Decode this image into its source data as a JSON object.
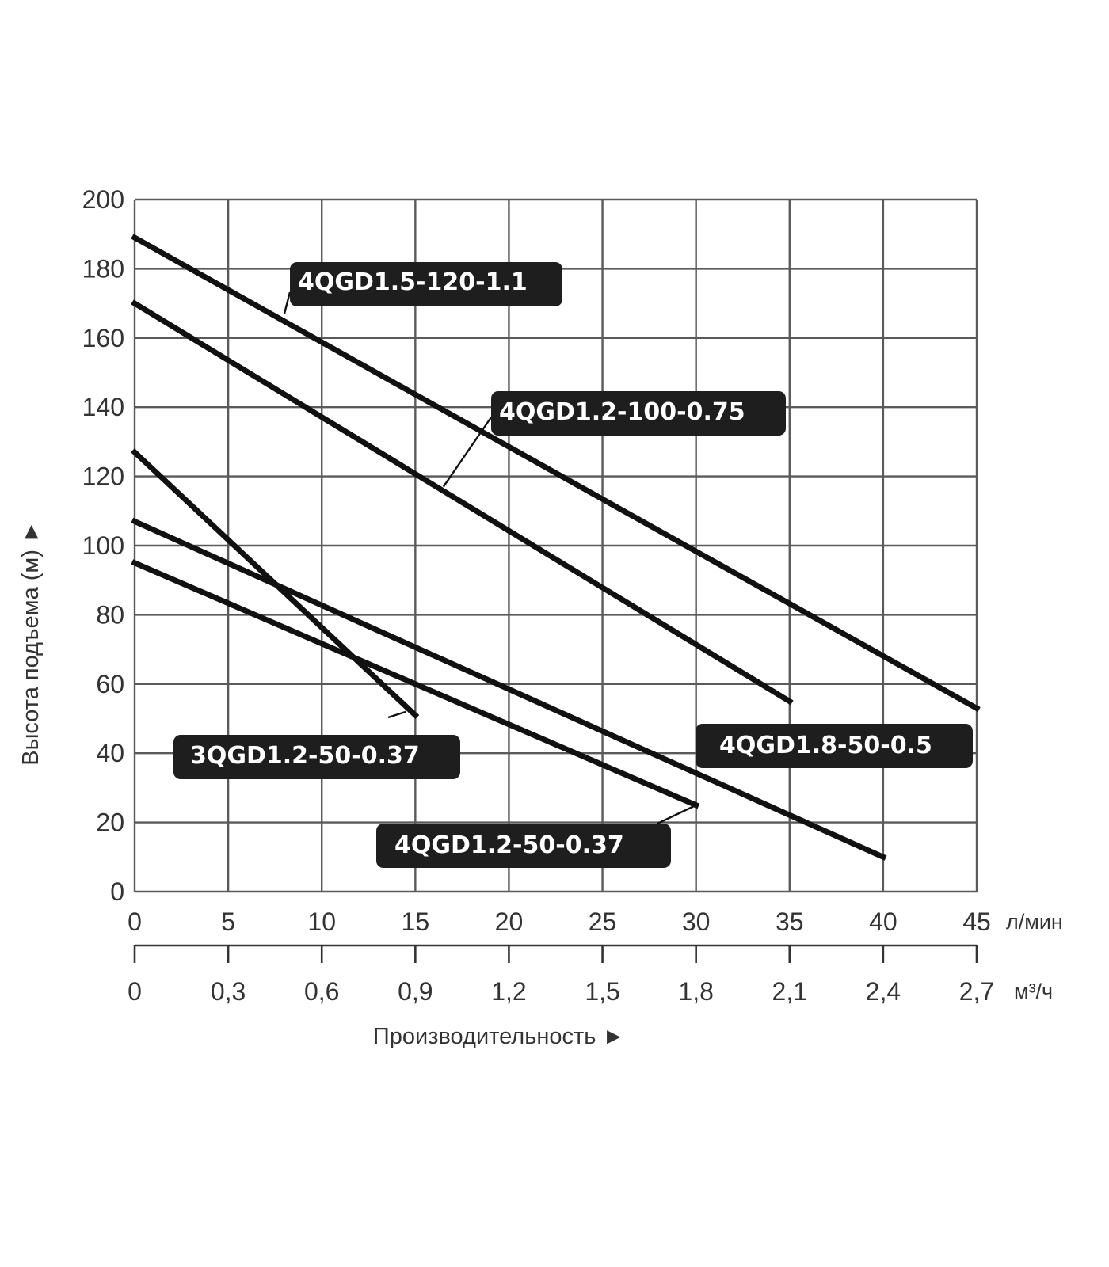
{
  "chart_data": {
    "type": "line",
    "title": "",
    "xlabel": "Производительность ►",
    "ylabel": "Высота подъема (м) ►",
    "x_unit": "л/мин",
    "x2_unit": "м³/ч",
    "xlim": [
      0,
      45
    ],
    "ylim": [
      0,
      200
    ],
    "grid": true,
    "x_ticks": [
      "0",
      "5",
      "10",
      "15",
      "20",
      "25",
      "30",
      "35",
      "40",
      "45"
    ],
    "x2_ticks": [
      "0",
      "0,3",
      "0,6",
      "0,9",
      "1,2",
      "1,5",
      "1,8",
      "2,1",
      "2,4",
      "2,7"
    ],
    "y_ticks": [
      "0",
      "20",
      "40",
      "60",
      "80",
      "100",
      "120",
      "140",
      "160",
      "180",
      "200"
    ],
    "series": [
      {
        "name": "4QGD1.5-120-1.1",
        "x": [
          0,
          45
        ],
        "y": [
          189,
          53
        ]
      },
      {
        "name": "4QGD1.2-100-0.75",
        "x": [
          0,
          35
        ],
        "y": [
          170,
          55
        ]
      },
      {
        "name": "3QGD1.2-50-0.37",
        "x": [
          0,
          15
        ],
        "y": [
          127,
          51
        ]
      },
      {
        "name": "4QGD1.8-50-0.5",
        "x": [
          0,
          40
        ],
        "y": [
          107,
          10
        ]
      },
      {
        "name": "4QGD1.2-50-0.37",
        "x": [
          0,
          30
        ],
        "y": [
          95,
          25
        ]
      }
    ],
    "annotations": [
      {
        "series": 0,
        "text": "4QGD1.5-120-1.1",
        "anchor": [
          8,
          167
        ]
      },
      {
        "series": 1,
        "text": "4QGD1.2-100-0.75",
        "anchor": [
          16.5,
          117
        ]
      },
      {
        "series": 2,
        "text": "3QGD1.2-50-0.37",
        "anchor": [
          14.5,
          52
        ]
      },
      {
        "series": 3,
        "text": "4QGD1.8-50-0.5",
        "anchor": [
          30,
          36
        ]
      },
      {
        "series": 4,
        "text": "4QGD1.2-50-0.37",
        "anchor": [
          30,
          25
        ]
      }
    ]
  }
}
